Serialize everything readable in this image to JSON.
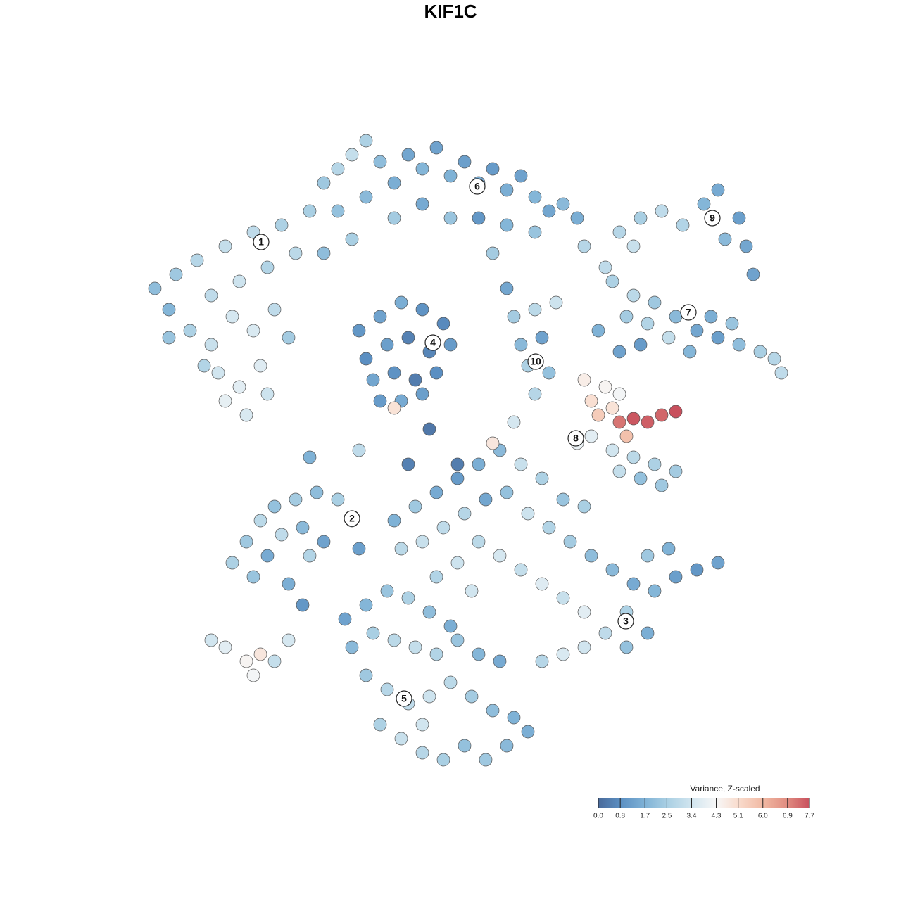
{
  "chart_data": {
    "type": "scatter",
    "title": "KIF1C",
    "xlim": [
      20,
      113
    ],
    "ylim": [
      18.5,
      109.5
    ],
    "x": [
      22,
      24,
      25,
      28,
      30,
      32,
      34,
      36,
      38,
      40,
      42,
      44,
      27,
      30,
      33,
      36,
      39,
      41,
      31,
      34,
      37,
      32,
      35,
      38,
      29,
      24,
      46,
      48,
      50,
      52,
      54,
      56,
      58,
      60,
      62,
      64,
      66,
      68,
      70,
      72,
      74,
      76,
      78,
      80,
      82,
      48,
      52,
      56,
      60,
      64,
      68,
      72,
      76,
      50,
      46,
      70,
      83,
      86,
      51,
      54,
      57,
      60,
      63,
      52,
      55,
      58,
      61,
      64,
      53,
      56,
      59,
      62,
      54,
      57,
      60,
      73,
      76,
      79,
      74,
      77,
      75,
      78,
      76,
      72,
      88,
      91,
      94,
      97,
      100,
      102,
      105,
      106,
      103,
      90,
      107,
      87,
      90,
      93,
      96,
      99,
      102,
      105,
      108,
      110,
      111,
      89,
      92,
      95,
      101,
      104,
      98,
      88,
      91,
      85,
      83,
      84,
      86,
      85,
      87,
      88,
      88,
      90,
      92,
      94,
      96,
      89,
      84,
      87,
      90,
      93,
      96,
      91,
      94,
      88,
      82,
      33,
      35,
      37,
      39,
      42,
      45,
      48,
      50,
      36,
      38,
      40,
      43,
      41,
      44,
      46,
      51,
      56,
      59,
      62,
      65,
      68,
      71,
      74,
      77,
      80,
      83,
      57,
      60,
      63,
      66,
      69,
      72,
      75,
      78,
      81,
      84,
      87,
      90,
      93,
      96,
      99,
      102,
      92,
      95,
      89,
      86,
      83,
      80,
      77,
      89,
      92,
      65,
      68,
      71,
      74,
      77,
      80,
      83,
      62,
      67,
      49,
      52,
      55,
      58,
      61,
      64,
      50,
      53,
      56,
      59,
      62,
      65,
      68,
      71,
      52,
      55,
      58,
      61,
      64,
      67,
      70,
      73,
      54,
      57,
      60,
      63,
      66,
      69,
      72,
      75,
      60,
      30,
      32,
      35,
      37,
      36,
      39,
      41,
      61,
      58,
      65,
      51,
      43,
      44,
      70,
      73,
      56
    ],
    "y": [
      87,
      84,
      89,
      91,
      86,
      93,
      88,
      95,
      90,
      96,
      92,
      98,
      81,
      79,
      83,
      81,
      84,
      80,
      75,
      73,
      76,
      71,
      69,
      72,
      76,
      80,
      102,
      104,
      106,
      108,
      105,
      102,
      106,
      104,
      107,
      103,
      105,
      102,
      104,
      101,
      103,
      100,
      98,
      99,
      97,
      98,
      100,
      97,
      99,
      97,
      97,
      96,
      95,
      94,
      92,
      92,
      93,
      90,
      81,
      83,
      85,
      84,
      82,
      77,
      79,
      80,
      78,
      79,
      74,
      75,
      74,
      75,
      71,
      71,
      72,
      83,
      84,
      85,
      79,
      80,
      76,
      75,
      72,
      87,
      95,
      97,
      98,
      96,
      99,
      101,
      97,
      93,
      94,
      93,
      89,
      88,
      86,
      85,
      83,
      81,
      80,
      79,
      78,
      77,
      75,
      83,
      82,
      80,
      83,
      82,
      78,
      78,
      79,
      81,
      74,
      71,
      73,
      69,
      70,
      72,
      68,
      68.5,
      68,
      69,
      69.5,
      66,
      66,
      64,
      63,
      62,
      61,
      60,
      59,
      61,
      65,
      48,
      51,
      54,
      56,
      57,
      58,
      57,
      54,
      46,
      49,
      52,
      53,
      45,
      49,
      51,
      50,
      54,
      56,
      58,
      60,
      62,
      64,
      62,
      60,
      57,
      56,
      50,
      51,
      53,
      55,
      57,
      58,
      55,
      53,
      51,
      49,
      47,
      45,
      44,
      46,
      47,
      48,
      49,
      50,
      41,
      38,
      36,
      35,
      34,
      36,
      38,
      48,
      51,
      49,
      47,
      45,
      43,
      41,
      46,
      44,
      40,
      42,
      44,
      43,
      41,
      39,
      36,
      38,
      37,
      36,
      35,
      37,
      35,
      34,
      32,
      30,
      28,
      29,
      31,
      29,
      27,
      26,
      25,
      23,
      21,
      20,
      22,
      20,
      22,
      24,
      25,
      37,
      36,
      34,
      35,
      32,
      34,
      37,
      67,
      62,
      62,
      64,
      42,
      63,
      65,
      68,
      70
    ],
    "values": [
      2.0,
      1.8,
      2.3,
      2.8,
      3.0,
      3.1,
      3.3,
      3.0,
      2.7,
      2.6,
      2.9,
      2.5,
      2.6,
      3.2,
      3.5,
      3.6,
      3.0,
      2.4,
      3.4,
      3.8,
      3.7,
      3.9,
      3.6,
      3.3,
      2.7,
      2.2,
      2.3,
      2.8,
      3.1,
      2.6,
      2.0,
      1.6,
      1.4,
      1.8,
      1.3,
      1.7,
      1.2,
      1.5,
      1.1,
      1.6,
      1.3,
      1.8,
      1.4,
      1.9,
      1.6,
      2.1,
      1.9,
      2.4,
      1.5,
      2.2,
      1.0,
      1.8,
      2.2,
      2.5,
      2.0,
      2.4,
      2.8,
      3.0,
      1.0,
      1.3,
      1.6,
      0.9,
      0.7,
      0.8,
      1.2,
      0.5,
      0.6,
      1.1,
      1.4,
      0.9,
      0.4,
      0.8,
      1.1,
      1.5,
      1.2,
      2.4,
      2.9,
      3.3,
      1.9,
      1.3,
      2.6,
      2.1,
      2.8,
      1.4,
      2.8,
      2.5,
      3.0,
      2.7,
      1.8,
      1.5,
      1.2,
      1.4,
      1.9,
      3.2,
      1.3,
      2.6,
      2.9,
      2.3,
      1.9,
      1.4,
      1.2,
      2.0,
      2.5,
      2.8,
      3.0,
      2.4,
      2.7,
      3.1,
      1.6,
      2.2,
      1.8,
      1.3,
      1.1,
      1.7,
      4.6,
      5.0,
      4.4,
      5.5,
      4.9,
      4.2,
      7.2,
      7.6,
      7.5,
      7.4,
      7.7,
      5.8,
      3.8,
      3.4,
      2.9,
      2.6,
      2.4,
      2.1,
      2.3,
      3.1,
      4.0,
      2.6,
      2.3,
      2.9,
      2.1,
      2.4,
      2.0,
      2.5,
      1.8,
      2.2,
      1.5,
      3.0,
      1.9,
      1.6,
      2.7,
      1.3,
      1.2,
      1.7,
      2.3,
      1.5,
      1.1,
      1.6,
      1.9,
      3.2,
      2.6,
      2.2,
      2.5,
      2.9,
      3.2,
      3.0,
      2.8,
      1.4,
      2.1,
      3.3,
      2.7,
      2.4,
      2.0,
      1.9,
      1.5,
      1.8,
      1.2,
      1.0,
      1.3,
      2.3,
      1.7,
      2.6,
      3.0,
      3.4,
      3.6,
      2.8,
      2.1,
      1.6,
      3.3,
      2.9,
      3.5,
      3.1,
      3.7,
      3.2,
      3.8,
      2.7,
      3.4,
      1.3,
      1.8,
      2.2,
      2.6,
      2.0,
      1.6,
      1.9,
      2.5,
      2.9,
      3.1,
      2.7,
      2.2,
      1.8,
      1.5,
      2.3,
      2.8,
      3.0,
      3.3,
      2.9,
      2.4,
      2.0,
      1.7,
      2.6,
      3.2,
      2.8,
      2.5,
      2.1,
      2.3,
      1.9,
      1.6,
      3.4,
      3.4,
      3.8,
      4.4,
      4.8,
      4.2,
      3.1,
      3.5,
      0.3,
      0.5,
      0.4,
      3.0,
      1.0,
      1.7,
      4.8,
      3.5,
      4.9
    ],
    "annotations": [
      {
        "text": "1",
        "x": 37.1,
        "y": 93.6
      },
      {
        "text": "6",
        "x": 67.8,
        "y": 101.5
      },
      {
        "text": "4",
        "x": 61.5,
        "y": 79.3
      },
      {
        "text": "10",
        "x": 76.1,
        "y": 76.6
      },
      {
        "text": "9",
        "x": 101.2,
        "y": 97.0
      },
      {
        "text": "7",
        "x": 97.8,
        "y": 83.6
      },
      {
        "text": "8",
        "x": 81.8,
        "y": 65.7
      },
      {
        "text": "2",
        "x": 50.0,
        "y": 54.3
      },
      {
        "text": "3",
        "x": 88.9,
        "y": 39.7
      },
      {
        "text": "5",
        "x": 57.4,
        "y": 28.7
      }
    ],
    "colorbar": {
      "title": "Variance, Z-scaled",
      "ticks": [
        {
          "value": 0,
          "label": "0.0"
        },
        0.8,
        1.7,
        2.5,
        3.4,
        4.3,
        5.1,
        {
          "value": 6,
          "label": "6.0"
        },
        6.9,
        7.7
      ],
      "colors": [
        "#4a6a9a",
        "#5b8fc2",
        "#7fb2d6",
        "#a9cfe3",
        "#d1e5ef",
        "#f7f7f7",
        "#f9dccd",
        "#f1b9a3",
        "#e08b80",
        "#c8505d"
      ]
    }
  }
}
